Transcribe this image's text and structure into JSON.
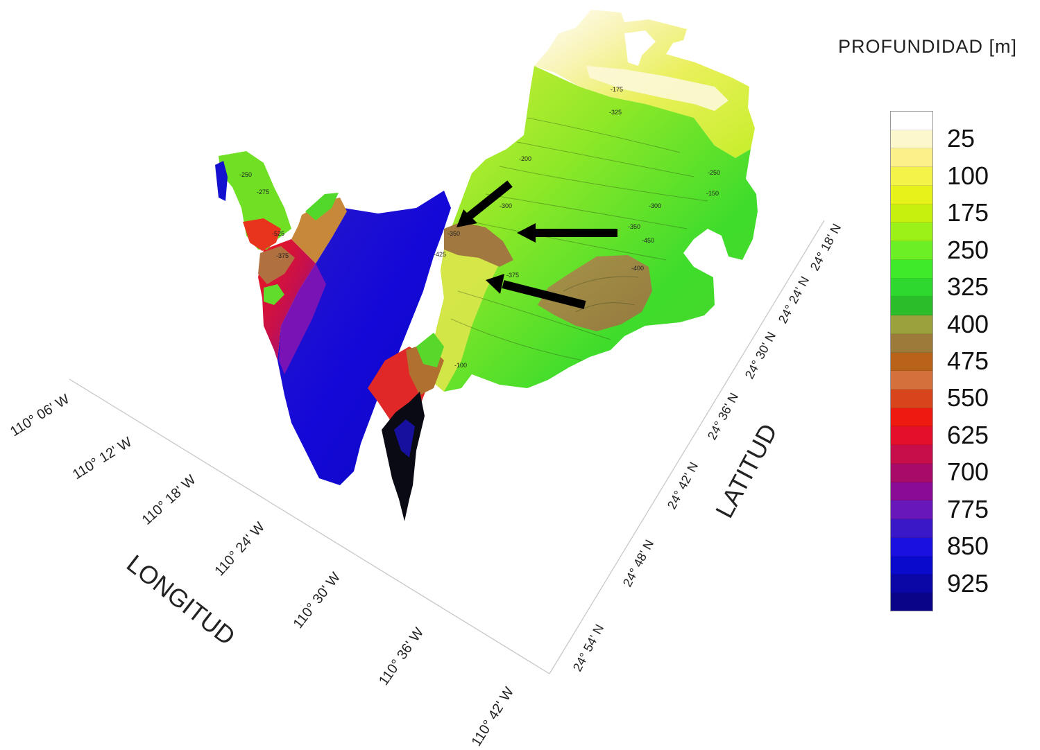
{
  "legend": {
    "title": "PROFUNDIDAD [m]",
    "labels": [
      "25",
      "100",
      "175",
      "250",
      "325",
      "400",
      "475",
      "550",
      "625",
      "700",
      "775",
      "850",
      "925"
    ],
    "colors": [
      "#ffffff",
      "#fdf7cc",
      "#fbf08a",
      "#f3f34a",
      "#e6f21a",
      "#c8f00e",
      "#9cf218",
      "#6cf025",
      "#3eea2a",
      "#2ed82e",
      "#2bbd2a",
      "#9aa23c",
      "#9c7a3a",
      "#b8621a",
      "#d4703c",
      "#d8441c",
      "#ee1a10",
      "#e4102a",
      "#c80e4a",
      "#a80a6a",
      "#8a0c96",
      "#6818b8",
      "#3a18c8",
      "#1a10e0",
      "#0a0acc",
      "#0b06a6",
      "#0a0488"
    ]
  },
  "axes": {
    "longitude_title": "LONGITUD",
    "latitude_title": "LATITUD",
    "longitude_ticks": [
      "110° 06' W",
      "110° 12' W",
      "110° 18' W",
      "110° 24' W",
      "110° 30' W",
      "110° 36' W",
      "110° 42' W"
    ],
    "latitude_ticks": [
      "24° 18' N",
      "24° 24' N",
      "24° 30' N",
      "24° 36' N",
      "24° 42' N",
      "24° 48' N",
      "24° 54' N"
    ]
  },
  "contour_labels": [
    "-175",
    "-200",
    "-250",
    "-275",
    "-300",
    "-325",
    "-350",
    "-375",
    "-400",
    "-425",
    "-450",
    "-525",
    "-150",
    "-100",
    "-250",
    "-300",
    "-375",
    "-350"
  ],
  "annotations": {
    "arrow_count": 3,
    "arrow_color": "#000000"
  }
}
